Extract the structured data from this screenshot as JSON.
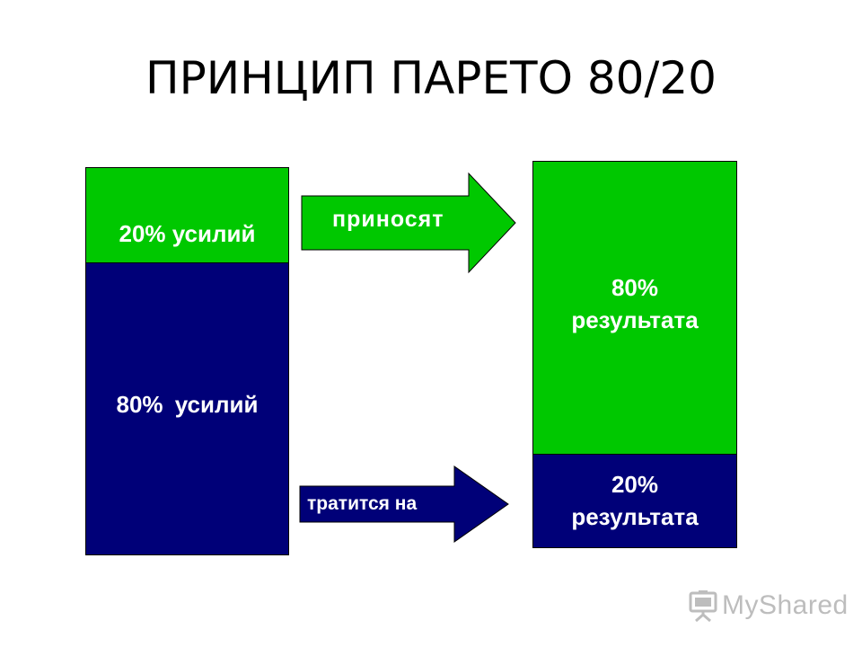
{
  "title": "ПРИНЦИП ПАРЕТО 80/20",
  "colors": {
    "green": "#00c800",
    "navy": "#000078",
    "logo_gray": "#bdbdbd"
  },
  "left_column": {
    "top_label": "20% усилий",
    "bottom_label": "80% усилий"
  },
  "right_column": {
    "top_label": "80%\nрезультата",
    "bottom_label": "20%\nрезультата"
  },
  "arrows": {
    "top_label": "приносят",
    "bottom_label": "тратится на"
  },
  "logo": {
    "text": "MyShared",
    "icon": "presentation-board-icon"
  }
}
